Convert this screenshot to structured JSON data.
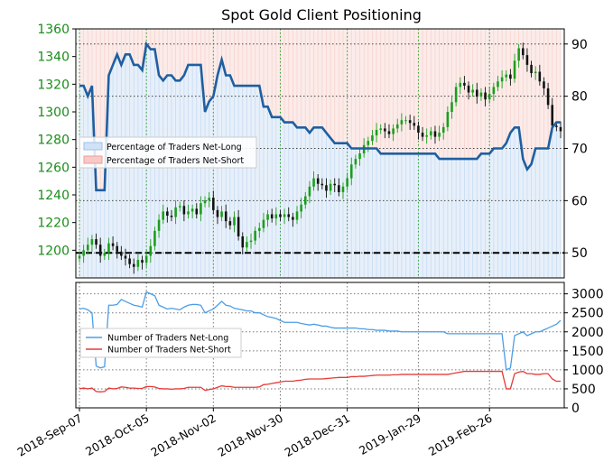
{
  "chart_data": [
    {
      "type": "line",
      "title": "Spot Gold Client Positioning",
      "ylabel_left": "",
      "ylabel_right": "",
      "ylim_left": [
        1180,
        1360
      ],
      "yticks_left": [
        "1200",
        "1220",
        "1240",
        "1260",
        "1280",
        "1300",
        "1320",
        "1340",
        "1360"
      ],
      "ylim_right": [
        45.2,
        92.9
      ],
      "yticks_right": [
        "50",
        "60",
        "70",
        "80",
        "90"
      ],
      "legend_position": "middle-left",
      "legend": [
        {
          "name": "Percentage of Traders Net-Long",
          "color": "#cfe2f7"
        },
        {
          "name": "Percentage of Traders Net-Short",
          "color": "#f9c9c7"
        }
      ],
      "reference_line": 50,
      "price_series": {
        "name": "Spot Gold (candlesticks)",
        "values": [
          1196,
          1200,
          1204,
          1208,
          1204,
          1196,
          1198,
          1205,
          1203,
          1199,
          1196,
          1194,
          1190,
          1188,
          1193,
          1191,
          1196,
          1203,
          1214,
          1222,
          1228,
          1225,
          1224,
          1231,
          1232,
          1226,
          1228,
          1230,
          1226,
          1234,
          1236,
          1238,
          1229,
          1224,
          1228,
          1221,
          1218,
          1224,
          1210,
          1202,
          1206,
          1207,
          1214,
          1216,
          1222,
          1226,
          1223,
          1226,
          1224,
          1226,
          1224,
          1222,
          1228,
          1233,
          1239,
          1246,
          1252,
          1248,
          1247,
          1243,
          1248,
          1247,
          1242,
          1246,
          1252,
          1262,
          1266,
          1270,
          1276,
          1279,
          1283,
          1287,
          1288,
          1286,
          1284,
          1288,
          1291,
          1294,
          1294,
          1292,
          1290,
          1285,
          1282,
          1283,
          1286,
          1282,
          1285,
          1289,
          1300,
          1307,
          1318,
          1321,
          1319,
          1314,
          1316,
          1311,
          1314,
          1309,
          1313,
          1318,
          1322,
          1325,
          1327,
          1324,
          1337,
          1346,
          1341,
          1334,
          1328,
          1329,
          1322,
          1317,
          1305,
          1290,
          1289,
          1286
        ]
      },
      "net_long_pct_series": {
        "name": "Percentage of Traders Net-Long",
        "values": [
          82,
          82,
          80,
          82,
          62,
          62,
          62,
          84,
          86,
          88,
          86,
          88,
          88,
          86,
          86,
          85,
          90,
          89,
          89,
          84,
          83,
          84,
          84,
          83,
          83,
          84,
          86,
          86,
          86,
          86,
          77,
          79,
          80,
          84,
          87,
          84,
          84,
          82,
          82,
          82,
          82,
          82,
          82,
          82,
          78,
          78,
          76,
          76,
          76,
          75,
          75,
          75,
          74,
          74,
          74,
          73,
          74,
          74,
          74,
          73,
          72,
          71,
          71,
          71,
          71,
          70,
          70,
          70,
          70,
          70,
          70,
          70,
          69,
          69,
          69,
          69,
          69,
          69,
          69,
          69,
          69,
          69,
          69,
          69,
          69,
          69,
          68,
          68,
          68,
          68,
          68,
          68,
          68,
          68,
          68,
          68,
          69,
          69,
          69,
          70,
          70,
          70,
          71,
          73,
          74,
          74,
          68,
          66,
          67,
          70,
          70,
          70,
          70,
          74,
          75,
          75
        ]
      }
    },
    {
      "type": "line",
      "ylim": [
        0,
        3300
      ],
      "yticks": [
        "0",
        "500",
        "1000",
        "1500",
        "2000",
        "2500",
        "3000"
      ],
      "legend_position": "middle-left",
      "x_tick_labels": [
        "2018-Sep-07",
        "2018-Oct-05",
        "2018-Nov-02",
        "2018-Nov-30",
        "2018-Dec-31",
        "2019-Jan-29",
        "2019-Feb-26"
      ],
      "series": [
        {
          "name": "Number of Traders Net-Long",
          "color": "#4c9ee6",
          "values": [
            2600,
            2620,
            2580,
            2500,
            1100,
            1050,
            1080,
            2700,
            2700,
            2720,
            2850,
            2800,
            2750,
            2700,
            2680,
            2650,
            3050,
            3000,
            2950,
            2700,
            2650,
            2600,
            2620,
            2600,
            2580,
            2650,
            2700,
            2720,
            2720,
            2700,
            2500,
            2550,
            2600,
            2700,
            2800,
            2700,
            2680,
            2620,
            2600,
            2580,
            2550,
            2550,
            2500,
            2500,
            2450,
            2400,
            2380,
            2350,
            2300,
            2250,
            2250,
            2250,
            2250,
            2220,
            2200,
            2180,
            2200,
            2180,
            2150,
            2150,
            2120,
            2100,
            2100,
            2100,
            2100,
            2100,
            2100,
            2080,
            2080,
            2060,
            2060,
            2040,
            2040,
            2040,
            2020,
            2020,
            2020,
            2000,
            2000,
            2000,
            2000,
            2000,
            2000,
            2000,
            2000,
            2000,
            2000,
            2000,
            1950,
            1950,
            1950,
            1950,
            1950,
            1950,
            1950,
            1950,
            1950,
            1950,
            1950,
            1950,
            1950,
            1950,
            1000,
            1050,
            1900,
            1950,
            2000,
            1900,
            1950,
            2000,
            2000,
            2050,
            2100,
            2150,
            2200,
            2300
          ]
        },
        {
          "name": "Number of Traders Net-Short",
          "color": "#e53b37",
          "values": [
            500,
            520,
            500,
            520,
            430,
            420,
            430,
            520,
            500,
            510,
            550,
            540,
            520,
            520,
            510,
            510,
            560,
            560,
            550,
            510,
            500,
            500,
            490,
            500,
            500,
            510,
            540,
            540,
            540,
            540,
            460,
            480,
            500,
            540,
            580,
            560,
            560,
            540,
            540,
            540,
            540,
            540,
            540,
            550,
            610,
            620,
            640,
            660,
            680,
            700,
            700,
            700,
            720,
            730,
            750,
            760,
            760,
            760,
            760,
            770,
            780,
            790,
            800,
            800,
            800,
            820,
            820,
            830,
            830,
            840,
            850,
            860,
            860,
            860,
            860,
            870,
            870,
            880,
            880,
            880,
            880,
            880,
            880,
            880,
            880,
            880,
            880,
            880,
            880,
            900,
            920,
            940,
            960,
            960,
            960,
            960,
            960,
            960,
            960,
            960,
            960,
            960,
            500,
            500,
            900,
            940,
            960,
            900,
            900,
            880,
            880,
            900,
            900,
            760,
            700,
            700
          ]
        }
      ]
    }
  ]
}
